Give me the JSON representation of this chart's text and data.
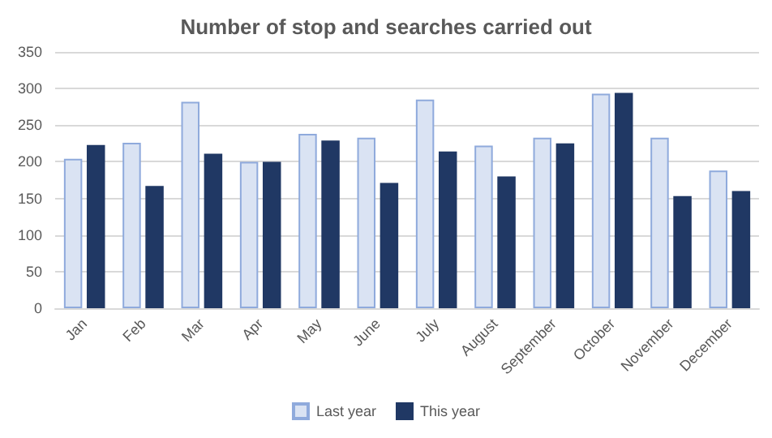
{
  "chart_data": {
    "type": "bar",
    "title": "Number of stop and searches carried out",
    "categories": [
      "Jan",
      "Feb",
      "Mar",
      "Apr",
      "May",
      "June",
      "July",
      "August",
      "September",
      "October",
      "November",
      "December"
    ],
    "series": [
      {
        "name": "Last year",
        "color": "#dae3f3",
        "values": [
          204,
          226,
          282,
          200,
          238,
          233,
          285,
          222,
          233,
          293,
          233,
          188
        ]
      },
      {
        "name": "This year",
        "color": "#203864",
        "values": [
          223,
          167,
          211,
          200,
          229,
          171,
          214,
          180,
          225,
          294,
          153,
          160
        ]
      }
    ],
    "ylim": [
      0,
      350
    ],
    "yticks": [
      0,
      50,
      100,
      150,
      200,
      250,
      300,
      350
    ],
    "grid": "y",
    "legend": "bottom"
  }
}
